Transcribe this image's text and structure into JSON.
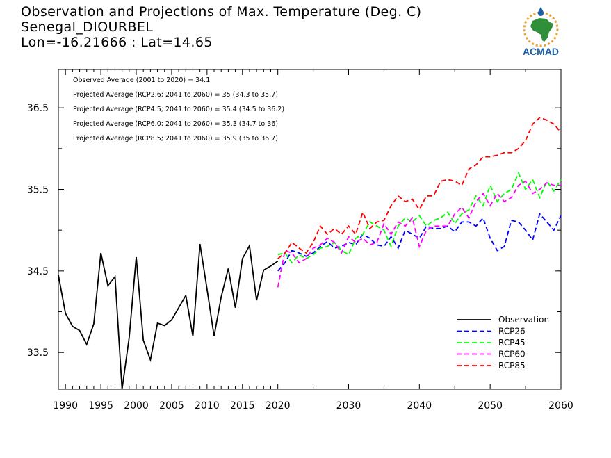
{
  "header": {
    "title": "Observation and Projections of Max. Temperature (Deg. C)",
    "station": "Senegal_DIOURBEL",
    "coords": "Lon=-16.21666 : Lat=14.65"
  },
  "logo": {
    "text": "ACMAD",
    "icon": "africa-map-logo-icon",
    "colors": {
      "africa": "#2f8f3a",
      "ring": "#e8a33a",
      "text": "#1a5fa8",
      "drop": "#1a5fa8"
    }
  },
  "annotations": [
    "Observed Average (2001 to 2020) = 34.1",
    "Projected Average (RCP2.6; 2041 to 2060) = 35 (34.3 to 35.7)",
    "Projected Average (RCP4.5; 2041 to 2060) = 35.4 (34.5 to 36.2)",
    "Projected Average (RCP6.0; 2041 to 2060) = 35.3 (34.7 to 36)",
    "Projected Average (RCP8.5; 2041 to 2060) = 35.9 (35 to 36.7)"
  ],
  "chart_data": {
    "type": "line",
    "xlim": [
      1989,
      2060
    ],
    "ylim": [
      33.05,
      36.97
    ],
    "x_ticks": [
      1990,
      1995,
      2000,
      2005,
      2010,
      2015,
      2020,
      2030,
      2040,
      2050,
      2060
    ],
    "x_tick_labels": [
      "1990",
      "1995",
      "2000",
      "2005",
      "2010",
      "2015",
      "2020",
      "2030",
      "2040",
      "2050",
      "2060"
    ],
    "y_ticks": [
      33.5,
      34.5,
      35.5,
      36.5
    ],
    "y_tick_labels": [
      "33.5",
      "34.5",
      "35.5",
      "36.5"
    ],
    "legend_position": "bottom-right",
    "series": [
      {
        "name": "Observation",
        "color": "#000000",
        "dash": "solid",
        "x": [
          1989,
          1990,
          1991,
          1992,
          1993,
          1994,
          1995,
          1996,
          1997,
          1998,
          1999,
          2000,
          2001,
          2002,
          2003,
          2004,
          2005,
          2006,
          2007,
          2008,
          2009,
          2010,
          2011,
          2012,
          2013,
          2014,
          2015,
          2016,
          2017,
          2018,
          2019,
          2020
        ],
        "values": [
          34.45,
          33.98,
          33.82,
          33.77,
          33.6,
          33.85,
          34.72,
          34.32,
          34.43,
          33.05,
          33.68,
          34.67,
          33.65,
          33.41,
          33.86,
          33.83,
          33.9,
          34.05,
          34.2,
          33.7,
          34.83,
          34.28,
          33.7,
          34.18,
          34.53,
          34.05,
          34.65,
          34.81,
          34.14,
          34.51,
          34.56,
          34.62
        ]
      },
      {
        "name": "RCP26",
        "color": "#0000ff",
        "dash": "dashed",
        "x": [
          2020,
          2021,
          2022,
          2023,
          2024,
          2025,
          2026,
          2027,
          2028,
          2029,
          2030,
          2031,
          2032,
          2033,
          2034,
          2035,
          2036,
          2037,
          2038,
          2039,
          2040,
          2041,
          2042,
          2043,
          2044,
          2045,
          2046,
          2047,
          2048,
          2049,
          2050,
          2051,
          2052,
          2053,
          2054,
          2055,
          2056,
          2057,
          2058,
          2059,
          2060
        ],
        "values": [
          34.5,
          34.6,
          34.75,
          34.72,
          34.68,
          34.72,
          34.8,
          34.86,
          34.78,
          34.8,
          34.85,
          34.82,
          34.95,
          34.9,
          34.82,
          34.8,
          34.92,
          34.78,
          35,
          34.95,
          34.9,
          35.05,
          35.02,
          35.02,
          35.05,
          34.98,
          35.1,
          35.1,
          35.05,
          35.15,
          34.9,
          34.75,
          34.8,
          35.12,
          35.1,
          35,
          34.88,
          35.2,
          35.1,
          35,
          35.18
        ]
      },
      {
        "name": "RCP45",
        "color": "#00ff00",
        "dash": "dashed",
        "x": [
          2020,
          2021,
          2022,
          2023,
          2024,
          2025,
          2026,
          2027,
          2028,
          2029,
          2030,
          2031,
          2032,
          2033,
          2034,
          2035,
          2036,
          2037,
          2038,
          2039,
          2040,
          2041,
          2042,
          2043,
          2044,
          2045,
          2046,
          2047,
          2048,
          2049,
          2050,
          2051,
          2052,
          2053,
          2054,
          2055,
          2056,
          2057,
          2058,
          2059,
          2060
        ],
        "values": [
          34.7,
          34.72,
          34.6,
          34.7,
          34.65,
          34.7,
          34.78,
          34.8,
          34.85,
          34.75,
          34.7,
          34.9,
          34.95,
          35.1,
          35.05,
          35,
          34.8,
          35.05,
          35.15,
          35.1,
          35.18,
          35.05,
          35.12,
          35.15,
          35.22,
          35.08,
          35.2,
          35.25,
          35.42,
          35.3,
          35.55,
          35.35,
          35.45,
          35.5,
          35.7,
          35.5,
          35.62,
          35.4,
          35.6,
          35.48,
          35.62
        ]
      },
      {
        "name": "RCP60",
        "color": "#ff00ff",
        "dash": "dashed",
        "x": [
          2020,
          2021,
          2022,
          2023,
          2024,
          2025,
          2026,
          2027,
          2028,
          2029,
          2030,
          2031,
          2032,
          2033,
          2034,
          2035,
          2036,
          2037,
          2038,
          2039,
          2040,
          2041,
          2042,
          2043,
          2044,
          2045,
          2046,
          2047,
          2048,
          2049,
          2050,
          2051,
          2052,
          2053,
          2054,
          2055,
          2056,
          2057,
          2058,
          2059,
          2060
        ],
        "values": [
          34.3,
          34.75,
          34.72,
          34.6,
          34.65,
          34.78,
          34.82,
          34.9,
          34.85,
          34.72,
          34.92,
          34.85,
          34.9,
          34.82,
          34.85,
          35.08,
          34.95,
          35.1,
          35.05,
          35.15,
          34.8,
          35,
          35.05,
          35.05,
          35.05,
          35.2,
          35.28,
          35.15,
          35.35,
          35.45,
          35.3,
          35.45,
          35.35,
          35.4,
          35.55,
          35.6,
          35.45,
          35.5,
          35.58,
          35.55,
          35.55
        ]
      },
      {
        "name": "RCP85",
        "color": "#ff0000",
        "dash": "dashed",
        "x": [
          2020,
          2021,
          2022,
          2023,
          2024,
          2025,
          2026,
          2027,
          2028,
          2029,
          2030,
          2031,
          2032,
          2033,
          2034,
          2035,
          2036,
          2037,
          2038,
          2039,
          2040,
          2041,
          2042,
          2043,
          2044,
          2045,
          2046,
          2047,
          2048,
          2049,
          2050,
          2051,
          2052,
          2053,
          2054,
          2055,
          2056,
          2057,
          2058,
          2059,
          2060
        ],
        "values": [
          34.65,
          34.72,
          34.85,
          34.78,
          34.72,
          34.85,
          35.05,
          34.95,
          35.02,
          34.95,
          35.05,
          34.95,
          35.22,
          35.02,
          35.1,
          35.12,
          35.3,
          35.42,
          35.35,
          35.38,
          35.25,
          35.42,
          35.42,
          35.6,
          35.62,
          35.6,
          35.55,
          35.75,
          35.8,
          35.9,
          35.9,
          35.92,
          35.95,
          35.95,
          36.0,
          36.1,
          36.3,
          36.38,
          36.35,
          36.3,
          36.2
        ]
      }
    ]
  }
}
